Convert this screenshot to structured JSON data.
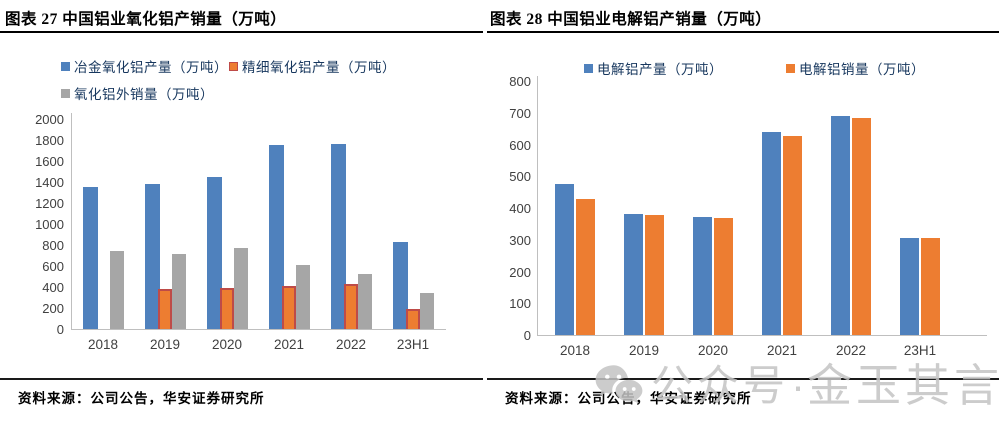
{
  "panels": [
    {
      "title": "图表 27  中国铝业氧化铝产销量（万吨）",
      "source": "资料来源：公司公告，华安证券研究所"
    },
    {
      "title": "图表 28  中国铝业电解铝产销量（万吨）",
      "source": "资料来源：公司公告，华安证券研究所"
    }
  ],
  "watermark": {
    "icon": "wechat-icon",
    "prefix": "公众号",
    "separator": "·",
    "suffix": "金玉其言",
    "color": "#c4c4c4"
  },
  "colors": {
    "blue": "#4F81BD",
    "orange": "#ED7D31",
    "orange_border": "#BE4B48",
    "gray": "#A6A6A6",
    "axis": "#BFBFBF"
  },
  "chart_data": [
    {
      "type": "bar",
      "title": "图表 27 中国铝业氧化铝产销量（万吨）",
      "categories": [
        "2018",
        "2019",
        "2020",
        "2021",
        "2022",
        "23H1"
      ],
      "series": [
        {
          "name": "冶金氧化铝产量（万吨）",
          "color": "#4F81BD",
          "values": [
            1350,
            1380,
            1450,
            1750,
            1760,
            830
          ]
        },
        {
          "name": "精细氧化铝产量（万吨）",
          "color": "#ED7D31",
          "border": "#BE4B48",
          "values": [
            0,
            385,
            395,
            410,
            430,
            195
          ]
        },
        {
          "name": "氧化铝外销量（万吨）",
          "color": "#A6A6A6",
          "values": [
            740,
            715,
            770,
            610,
            525,
            340
          ]
        }
      ],
      "ylim": [
        0,
        2000
      ],
      "ystep": 200,
      "grid": false,
      "legend_position": "top"
    },
    {
      "type": "bar",
      "title": "图表 28 中国铝业电解铝产销量（万吨）",
      "categories": [
        "2018",
        "2019",
        "2020",
        "2021",
        "2022",
        "23H1"
      ],
      "series": [
        {
          "name": "电解铝产量（万吨）",
          "color": "#4F81BD",
          "values": [
            475,
            381,
            371,
            640,
            690,
            307
          ]
        },
        {
          "name": "电解铝销量（万吨）",
          "color": "#ED7D31",
          "values": [
            428,
            378,
            367,
            628,
            685,
            304
          ]
        }
      ],
      "ylim": [
        0,
        800
      ],
      "ystep": 100,
      "grid": false,
      "legend_position": "top"
    }
  ]
}
